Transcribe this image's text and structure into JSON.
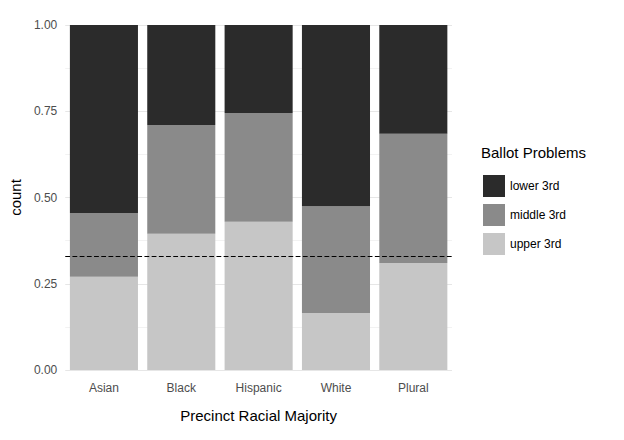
{
  "chart_data": {
    "type": "bar",
    "stacked": true,
    "x_label": "Precinct Racial Majority",
    "y_label": "count",
    "legend_title": "Ballot Problems",
    "legend": "right",
    "grid": true,
    "categories": [
      "Asian",
      "Black",
      "Hispanic",
      "White",
      "Plural"
    ],
    "series": [
      {
        "name": "lower 3rd",
        "color": "#2b2b2b",
        "values": [
          0.545,
          0.29,
          0.255,
          0.525,
          0.315
        ]
      },
      {
        "name": "middle 3rd",
        "color": "#8a8a8a",
        "values": [
          0.185,
          0.315,
          0.315,
          0.31,
          0.375
        ]
      },
      {
        "name": "upper 3rd",
        "color": "#c6c6c6",
        "values": [
          0.27,
          0.395,
          0.43,
          0.165,
          0.31
        ]
      }
    ],
    "reference_line": 0.333,
    "ylim": [
      0,
      1
    ],
    "yticks": [
      {
        "value": 0,
        "label": "0.00"
      },
      {
        "value": 0.25,
        "label": "0.25"
      },
      {
        "value": 0.5,
        "label": "0.50"
      },
      {
        "value": 0.75,
        "label": "0.75"
      },
      {
        "value": 1,
        "label": "1.00"
      }
    ]
  }
}
